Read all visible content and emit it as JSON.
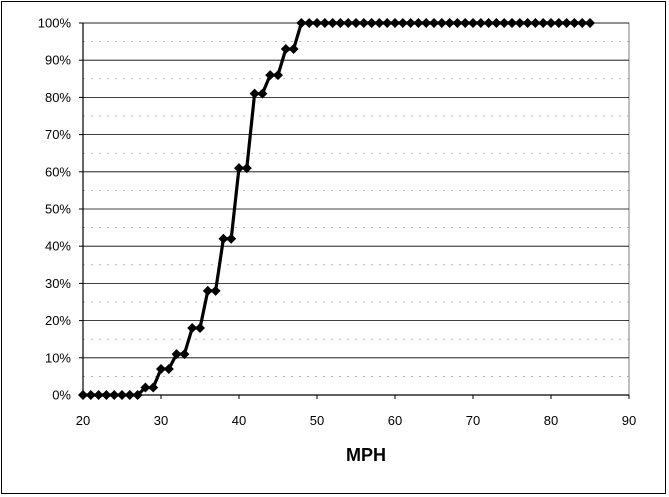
{
  "chart_data": {
    "type": "line",
    "title": "",
    "xlabel": "MPH",
    "ylabel": "",
    "xlim": [
      20,
      90
    ],
    "ylim": [
      0,
      100
    ],
    "x_ticks": [
      20,
      30,
      40,
      50,
      60,
      70,
      80,
      90
    ],
    "y_ticks": [
      0,
      10,
      20,
      30,
      40,
      50,
      60,
      70,
      80,
      90,
      100
    ],
    "y_tick_suffix": "%",
    "grid": true,
    "legend": "none",
    "line_color": "#000000",
    "marker": "diamond",
    "series": [
      {
        "x": [
          20,
          21,
          22,
          23,
          24,
          25,
          26,
          27,
          28,
          29,
          30,
          31,
          32,
          33,
          34,
          35,
          36,
          37,
          38,
          39,
          40,
          41,
          42,
          43,
          44,
          45,
          46,
          47,
          48,
          49,
          50,
          51,
          52,
          53,
          54,
          55,
          56,
          57,
          58,
          59,
          60,
          61,
          62,
          63,
          64,
          65,
          66,
          67,
          68,
          69,
          70,
          71,
          72,
          73,
          74,
          75,
          76,
          77,
          78,
          79,
          80,
          81,
          82,
          83,
          84,
          85
        ],
        "values": [
          0,
          0,
          0,
          0,
          0,
          0,
          0,
          0,
          2,
          2,
          7,
          7,
          11,
          11,
          18,
          18,
          28,
          28,
          42,
          42,
          61,
          61,
          81,
          81,
          86,
          86,
          93,
          93,
          100,
          100,
          100,
          100,
          100,
          100,
          100,
          100,
          100,
          100,
          100,
          100,
          100,
          100,
          100,
          100,
          100,
          100,
          100,
          100,
          100,
          100,
          100,
          100,
          100,
          100,
          100,
          100,
          100,
          100,
          100,
          100,
          100,
          100,
          100,
          100,
          100,
          100
        ]
      }
    ]
  }
}
